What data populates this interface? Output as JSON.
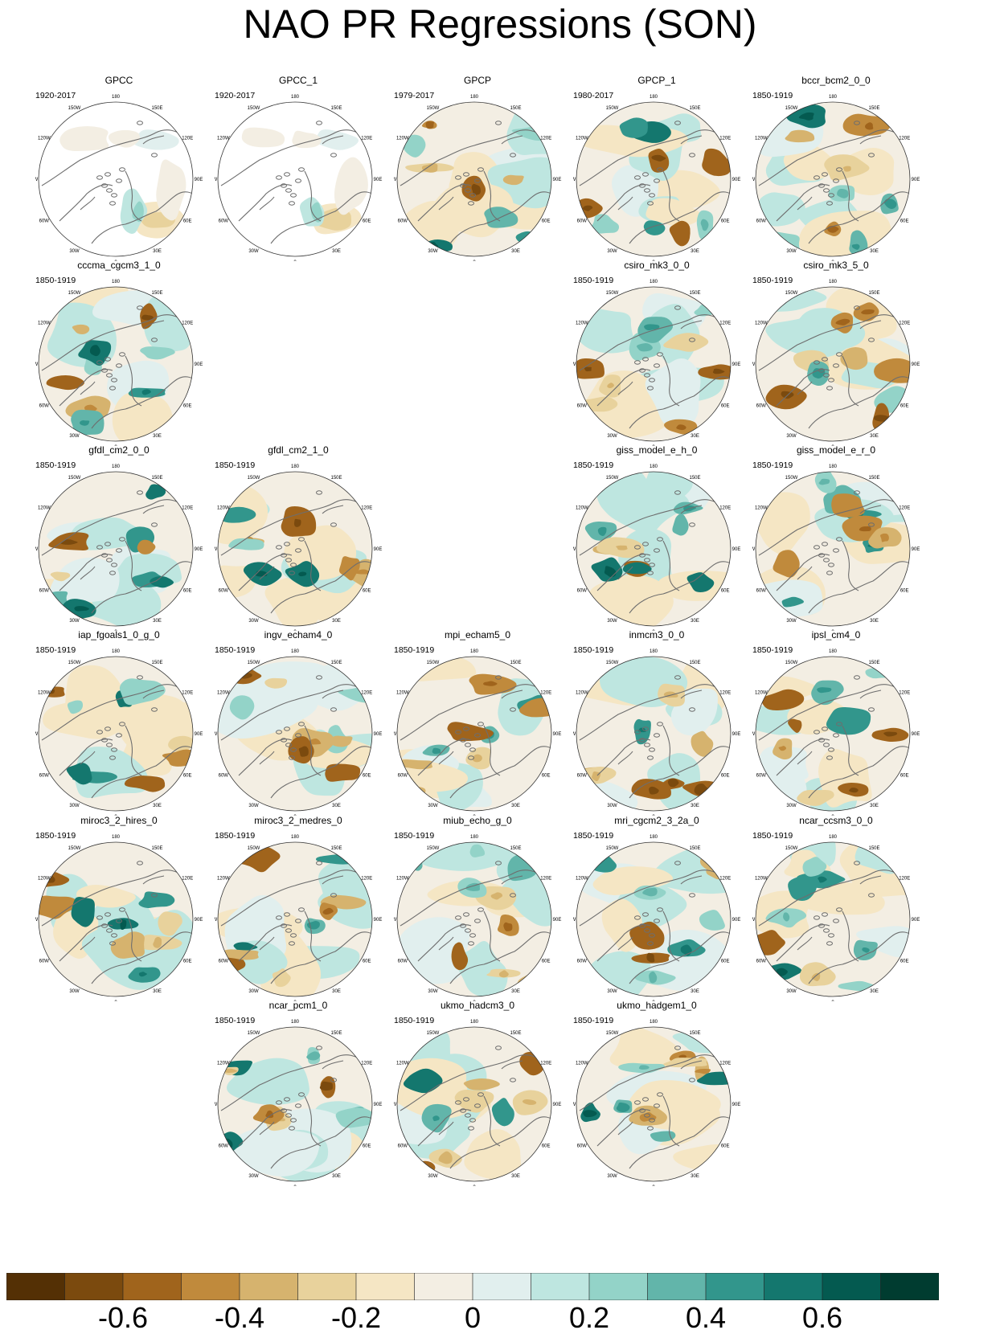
{
  "title": "NAO PR Regressions (SON)",
  "longitude_labels": [
    "180",
    "150W",
    "150E",
    "120W",
    "120E",
    "90W",
    "90E",
    "60W",
    "60E",
    "30W",
    "30E",
    "0"
  ],
  "panels": [
    {
      "name": "GPCC",
      "years": "1920-2017",
      "row": 0,
      "col": 0,
      "variant": "mask",
      "seed": 1
    },
    {
      "name": "GPCC_1",
      "years": "1920-2017",
      "row": 0,
      "col": 1,
      "variant": "mask",
      "seed": 2
    },
    {
      "name": "GPCP",
      "years": "1979-2017",
      "row": 0,
      "col": 2,
      "variant": "full",
      "seed": 3
    },
    {
      "name": "GPCP_1",
      "years": "1980-2017",
      "row": 0,
      "col": 3,
      "variant": "full",
      "seed": 4
    },
    {
      "name": "bccr_bcm2_0_0",
      "years": "1850-1919",
      "row": 0,
      "col": 4,
      "variant": "full",
      "seed": 5
    },
    {
      "name": "cccma_cgcm3_1_0",
      "years": "1850-1919",
      "row": 1,
      "col": 0,
      "variant": "full",
      "seed": 6
    },
    {
      "name": "csiro_mk3_0_0",
      "years": "1850-1919",
      "row": 1,
      "col": 3,
      "variant": "full",
      "seed": 7
    },
    {
      "name": "csiro_mk3_5_0",
      "years": "1850-1919",
      "row": 1,
      "col": 4,
      "variant": "full",
      "seed": 8
    },
    {
      "name": "gfdl_cm2_0_0",
      "years": "1850-1919",
      "row": 2,
      "col": 0,
      "variant": "full",
      "seed": 9
    },
    {
      "name": "gfdl_cm2_1_0",
      "years": "1850-1919",
      "row": 2,
      "col": 1,
      "variant": "full",
      "seed": 10
    },
    {
      "name": "giss_model_e_h_0",
      "years": "1850-1919",
      "row": 2,
      "col": 3,
      "variant": "full",
      "seed": 11
    },
    {
      "name": "giss_model_e_r_0",
      "years": "1850-1919",
      "row": 2,
      "col": 4,
      "variant": "full",
      "seed": 12
    },
    {
      "name": "iap_fgoals1_0_g_0",
      "years": "1850-1919",
      "row": 3,
      "col": 0,
      "variant": "full",
      "seed": 13
    },
    {
      "name": "ingv_echam4_0",
      "years": "1850-1919",
      "row": 3,
      "col": 1,
      "variant": "full",
      "seed": 14
    },
    {
      "name": "mpi_echam5_0",
      "years": "1850-1919",
      "row": 3,
      "col": 2,
      "variant": "full",
      "seed": 15
    },
    {
      "name": "inmcm3_0_0",
      "years": "1850-1919",
      "row": 3,
      "col": 3,
      "variant": "full",
      "seed": 16
    },
    {
      "name": "ipsl_cm4_0",
      "years": "1850-1919",
      "row": 3,
      "col": 4,
      "variant": "full",
      "seed": 17
    },
    {
      "name": "miroc3_2_hires_0",
      "years": "1850-1919",
      "row": 4,
      "col": 0,
      "variant": "full",
      "seed": 18
    },
    {
      "name": "miroc3_2_medres_0",
      "years": "1850-1919",
      "row": 4,
      "col": 1,
      "variant": "full",
      "seed": 19
    },
    {
      "name": "miub_echo_g_0",
      "years": "1850-1919",
      "row": 4,
      "col": 2,
      "variant": "full",
      "seed": 20
    },
    {
      "name": "mri_cgcm2_3_2a_0",
      "years": "1850-1919",
      "row": 4,
      "col": 3,
      "variant": "full",
      "seed": 21
    },
    {
      "name": "ncar_ccsm3_0_0",
      "years": "1850-1919",
      "row": 4,
      "col": 4,
      "variant": "full",
      "seed": 22
    },
    {
      "name": "ncar_pcm1_0",
      "years": "1850-1919",
      "row": 5,
      "col": 1,
      "variant": "full",
      "seed": 23
    },
    {
      "name": "ukmo_hadcm3_0",
      "years": "1850-1919",
      "row": 5,
      "col": 2,
      "variant": "full",
      "seed": 24
    },
    {
      "name": "ukmo_hadgem1_0",
      "years": "1850-1919",
      "row": 5,
      "col": 3,
      "variant": "full",
      "seed": 25
    }
  ],
  "colorbar": {
    "colors": [
      "#543005",
      "#7b4a0e",
      "#a0641c",
      "#c08a3c",
      "#d6b36e",
      "#e8d29c",
      "#f5e6c4",
      "#f3eee3",
      "#e1efee",
      "#bee6e0",
      "#93d3c8",
      "#62b5aa",
      "#32968c",
      "#14776e",
      "#045a50",
      "#003c30"
    ],
    "labels": [
      "-0.6",
      "-0.4",
      "-0.2",
      "0",
      "0.2",
      "0.4",
      "0.6"
    ],
    "label_values": [
      -0.6,
      -0.4,
      -0.2,
      0,
      0.2,
      0.4,
      0.6
    ],
    "range": [
      -0.8,
      0.8
    ]
  }
}
